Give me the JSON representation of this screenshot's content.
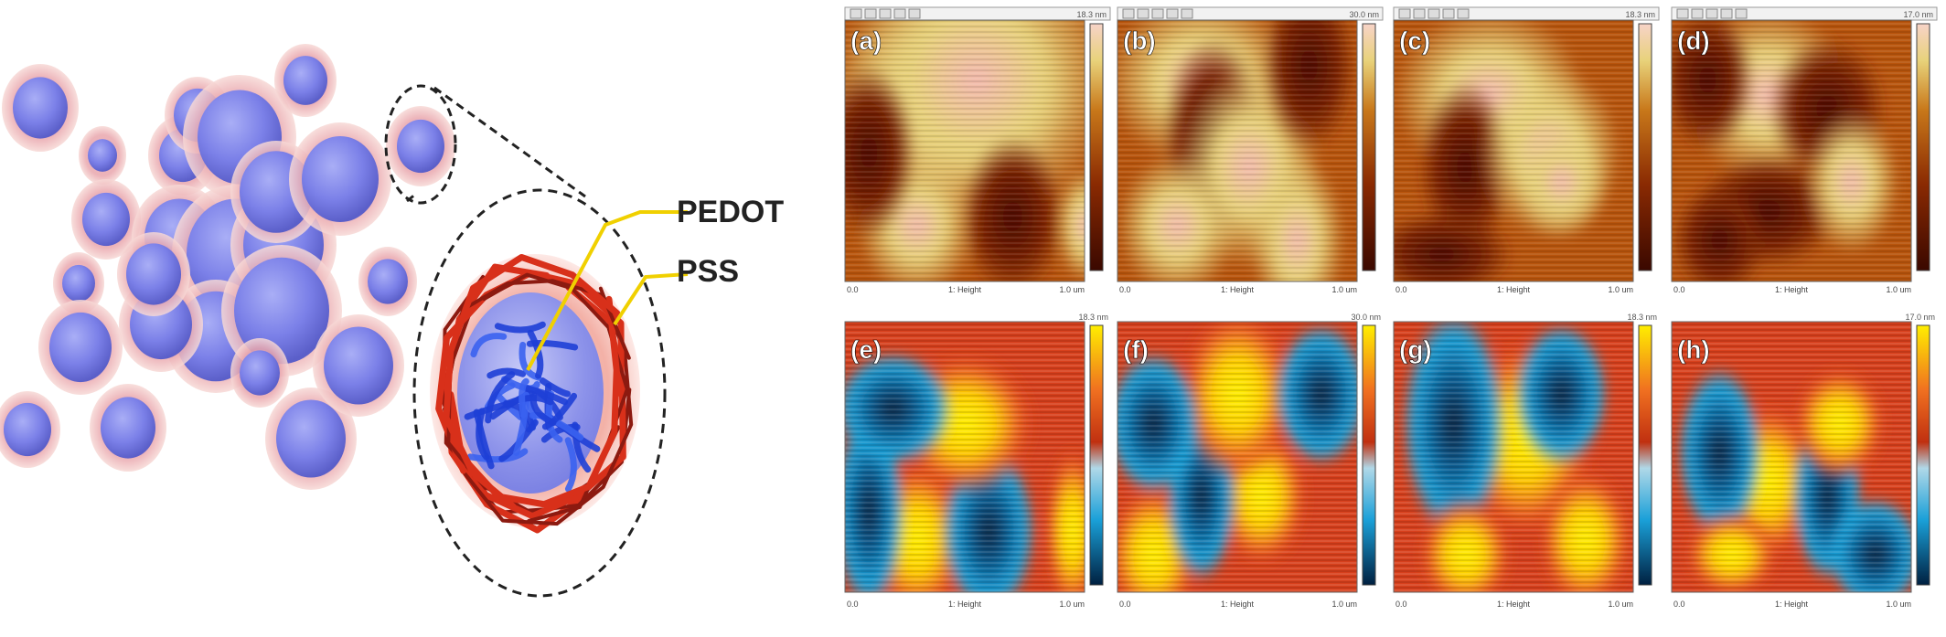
{
  "schematic": {
    "callouts": [
      "PEDOT",
      "PSS"
    ]
  },
  "panels": {
    "top_row": [
      {
        "tag": "(a)",
        "scale_max": "18.3 nm",
        "axis_left": "0.0",
        "axis_mid": "1: Height",
        "axis_right": "1.0 um",
        "colormap": "afm-brown"
      },
      {
        "tag": "(b)",
        "scale_max": "30.0 nm",
        "axis_left": "0.0",
        "axis_mid": "1: Height",
        "axis_right": "1.0 um",
        "colormap": "afm-brown"
      },
      {
        "tag": "(c)",
        "scale_max": "18.3 nm",
        "axis_left": "0.0",
        "axis_mid": "1: Height",
        "axis_right": "1.0 um",
        "colormap": "afm-brown"
      },
      {
        "tag": "(d)",
        "scale_max": "17.0 nm",
        "axis_left": "0.0",
        "axis_mid": "1: Height",
        "axis_right": "1.0 um",
        "colormap": "afm-brown"
      }
    ],
    "bottom_row": [
      {
        "tag": "(e)",
        "scale_max": "18.3 nm",
        "axis_left": "0.0",
        "axis_mid": "1: Height",
        "axis_right": "1.0 um",
        "colormap": "blue-red-yellow"
      },
      {
        "tag": "(f)",
        "scale_max": "30.0 nm",
        "axis_left": "0.0",
        "axis_mid": "1: Height",
        "axis_right": "1.0 um",
        "colormap": "blue-red-yellow"
      },
      {
        "tag": "(g)",
        "scale_max": "18.3 nm",
        "axis_left": "0.0",
        "axis_mid": "1: Height",
        "axis_right": "1.0 um",
        "colormap": "blue-red-yellow"
      },
      {
        "tag": "(h)",
        "scale_max": "17.0 nm",
        "axis_left": "0.0",
        "axis_mid": "1: Height",
        "axis_right": "1.0 um",
        "colormap": "blue-red-yellow"
      }
    ]
  },
  "colors": {
    "sphere_core": "#7b80e8",
    "sphere_halo": "#f2b9b6",
    "pss_chain": "#d8301a",
    "pedot_chain": "#1e3fd6",
    "leader_line": "#f0d000",
    "afm_dark": "#5a1200",
    "afm_mid": "#b8540c",
    "afm_light": "#e8d27a",
    "map_blue": "#1aa0d8",
    "map_red": "#e0401a",
    "map_yellow": "#ffe800"
  }
}
